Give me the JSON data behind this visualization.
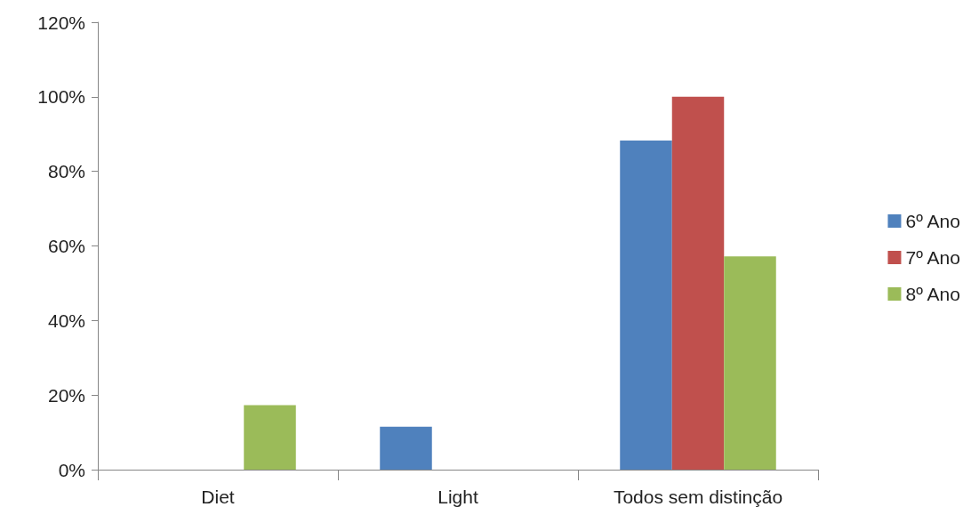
{
  "chart_data": {
    "type": "bar",
    "categories": [
      "Diet",
      "Light",
      "Todos sem distinção"
    ],
    "series": [
      {
        "name": "6º Ano",
        "color": "#4f81bd",
        "values": [
          0,
          11.5,
          88.3
        ]
      },
      {
        "name": "7º Ano",
        "color": "#c0504d",
        "values": [
          0,
          0,
          100
        ]
      },
      {
        "name": "8º Ano",
        "color": "#9bbb59",
        "values": [
          17.3,
          0,
          57.2
        ]
      }
    ],
    "ylim": [
      0,
      120
    ],
    "yticks": [
      {
        "value": 0,
        "label": "0%"
      },
      {
        "value": 20,
        "label": "20%"
      },
      {
        "value": 40,
        "label": "40%"
      },
      {
        "value": 60,
        "label": "60%"
      },
      {
        "value": 80,
        "label": "80%"
      },
      {
        "value": 100,
        "label": "100%"
      },
      {
        "value": 120,
        "label": "120%"
      }
    ],
    "grid": false,
    "legend": "right"
  }
}
